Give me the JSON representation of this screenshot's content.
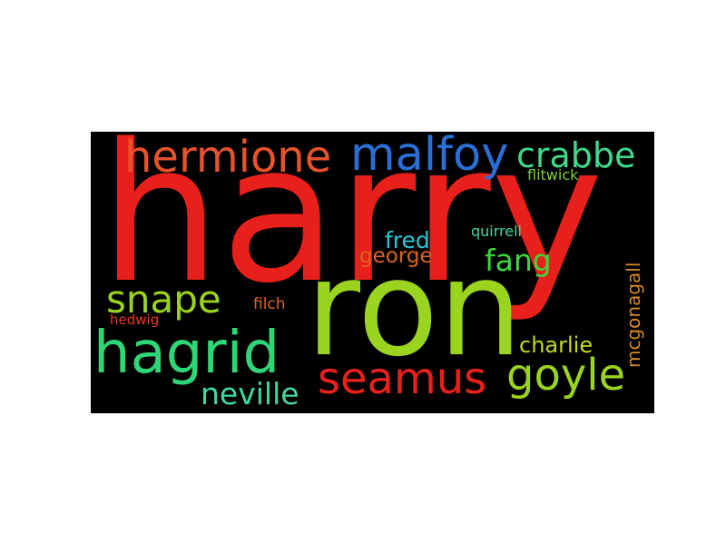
{
  "background": "#000000",
  "words": [
    {
      "id": "harry",
      "text": "harry",
      "color": "#e8201b"
    },
    {
      "id": "ron",
      "text": "ron",
      "color": "#9bd41e"
    },
    {
      "id": "hermione",
      "text": "hermione",
      "color": "#e6532b"
    },
    {
      "id": "malfoy",
      "text": "malfoy",
      "color": "#2a6fd6"
    },
    {
      "id": "crabbe",
      "text": "crabbe",
      "color": "#3fd98a"
    },
    {
      "id": "flitwick",
      "text": "flitwick",
      "color": "#7ecf2a"
    },
    {
      "id": "quirrell",
      "text": "quirrell",
      "color": "#3fd9a0"
    },
    {
      "id": "fred",
      "text": "fred",
      "color": "#26c6da"
    },
    {
      "id": "george",
      "text": "george",
      "color": "#d9651f"
    },
    {
      "id": "fang",
      "text": "fang",
      "color": "#3dd63d"
    },
    {
      "id": "mcgonagall",
      "text": "mcgonagall",
      "color": "#d98a1f"
    },
    {
      "id": "snape",
      "text": "snape",
      "color": "#9bd41e"
    },
    {
      "id": "filch",
      "text": "filch",
      "color": "#d9651f"
    },
    {
      "id": "hedwig",
      "text": "hedwig",
      "color": "#e23a1f"
    },
    {
      "id": "hagrid",
      "text": "hagrid",
      "color": "#2ed675"
    },
    {
      "id": "seamus",
      "text": "seamus",
      "color": "#e8201b"
    },
    {
      "id": "charlie",
      "text": "charlie",
      "color": "#c4d91e"
    },
    {
      "id": "goyle",
      "text": "goyle",
      "color": "#9bd41e"
    },
    {
      "id": "neville",
      "text": "neville",
      "color": "#3fd9a0"
    }
  ]
}
